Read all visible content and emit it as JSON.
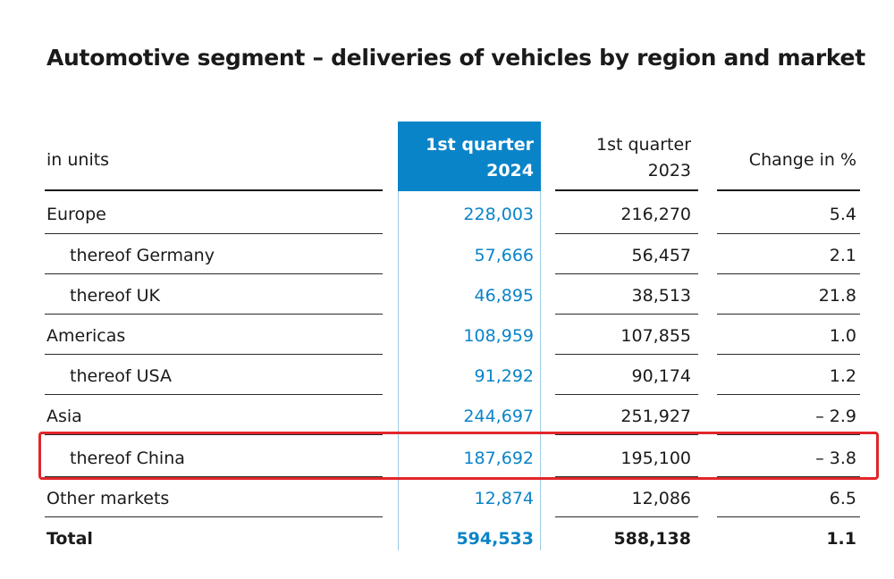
{
  "title": "Automotive segment – deliveries of vehicles by region and market",
  "header": {
    "units": "in units",
    "col_2024_line1": "1st quarter",
    "col_2024_line2": "2024",
    "col_2023_line1": "1st quarter",
    "col_2023_line2": "2023",
    "col_change": "Change in %"
  },
  "rows": [
    {
      "label": "Europe",
      "q1_2024": "228,003",
      "q1_2023": "216,270",
      "change": "5.4"
    },
    {
      "label": "thereof Germany",
      "q1_2024": "57,666",
      "q1_2023": "56,457",
      "change": "2.1"
    },
    {
      "label": "thereof UK",
      "q1_2024": "46,895",
      "q1_2023": "38,513",
      "change": "21.8"
    },
    {
      "label": "Americas",
      "q1_2024": "108,959",
      "q1_2023": "107,855",
      "change": "1.0"
    },
    {
      "label": "thereof USA",
      "q1_2024": "91,292",
      "q1_2023": "90,174",
      "change": "1.2"
    },
    {
      "label": "Asia",
      "q1_2024": "244,697",
      "q1_2023": "251,927",
      "change": "– 2.9"
    },
    {
      "label": "thereof China",
      "q1_2024": "187,692",
      "q1_2023": "195,100",
      "change": "– 3.8"
    },
    {
      "label": "Other markets",
      "q1_2024": "12,874",
      "q1_2023": "12,086",
      "change": "6.5"
    },
    {
      "label": "Total",
      "q1_2024": "594,533",
      "q1_2023": "588,138",
      "change": "1.1"
    }
  ],
  "colors": {
    "accent": "#0a84c8",
    "highlight_box": "#e0262a"
  }
}
